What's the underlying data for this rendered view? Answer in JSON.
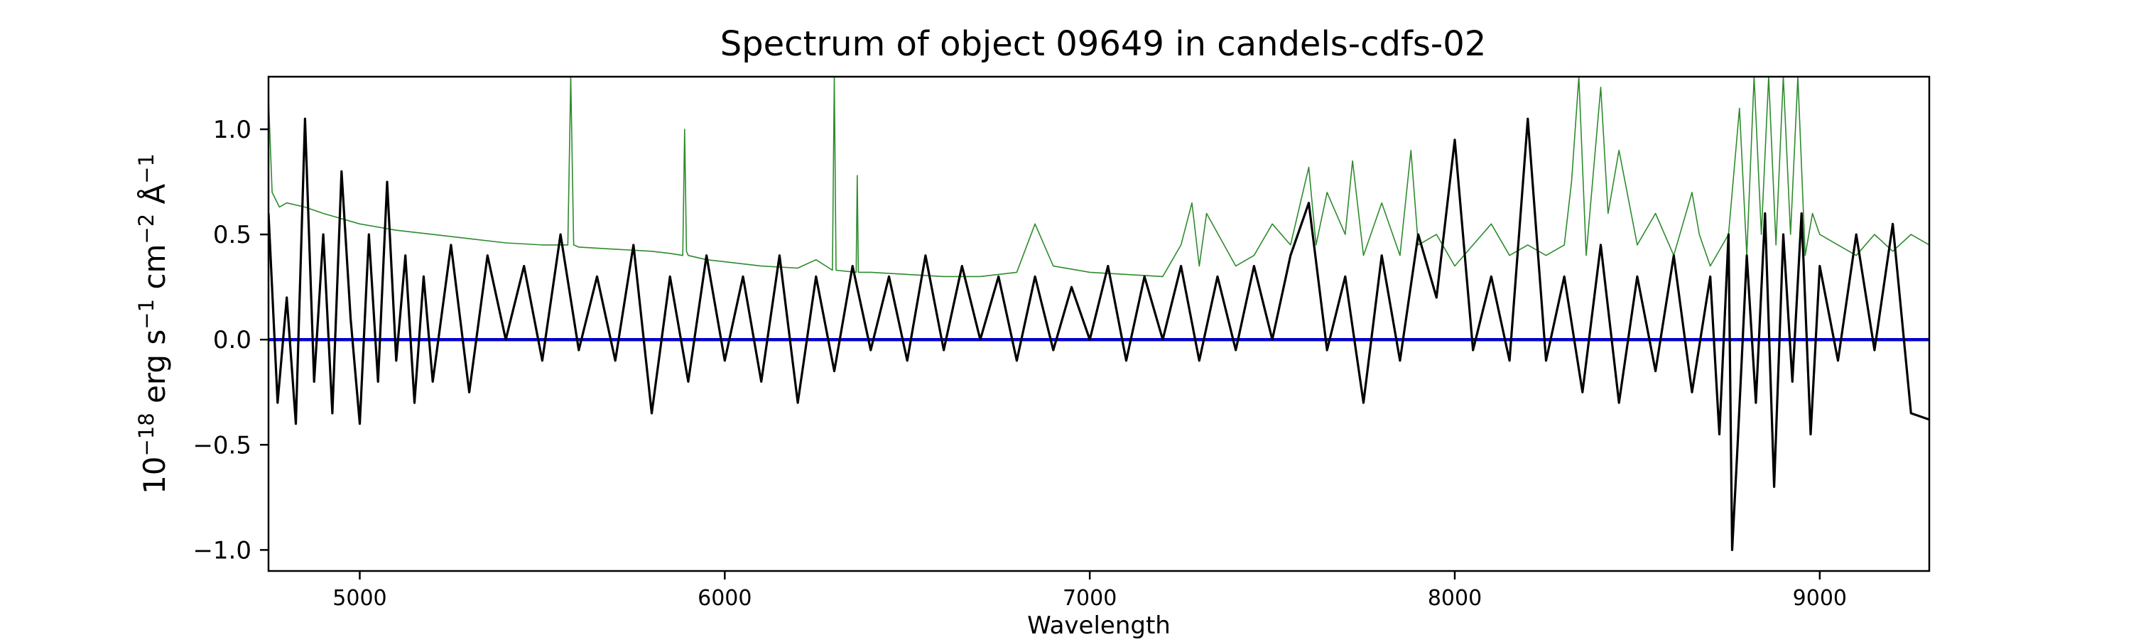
{
  "chart_data": {
    "type": "line",
    "title": "Spectrum of object 09649 in candels-cdfs-02",
    "xlabel": "Wavelength",
    "ylabel_parts": {
      "base": "10",
      "exp1": "−18",
      "erg": " erg s",
      "exp2": "−1",
      "cm": " cm",
      "exp3": "−2",
      "ang": " Å",
      "exp4": "−1"
    },
    "xlim": [
      4750,
      9300
    ],
    "ylim": [
      -1.1,
      1.25
    ],
    "xticks": [
      5000,
      6000,
      7000,
      8000,
      9000
    ],
    "yticks": [
      -1.0,
      -0.5,
      0.0,
      0.5,
      1.0
    ],
    "ytick_labels": [
      "−1.0",
      "−0.5",
      "0.0",
      "0.5",
      "1.0"
    ],
    "grid": false,
    "colors": {
      "flux": "#000000",
      "error": "#2e8b2e",
      "zero": "#0000cc",
      "axes": "#000000"
    },
    "series": [
      {
        "id": "flux",
        "x": [
          4750,
          4775,
          4800,
          4825,
          4850,
          4875,
          4900,
          4925,
          4950,
          4975,
          5000,
          5025,
          5050,
          5075,
          5100,
          5125,
          5150,
          5175,
          5200,
          5250,
          5300,
          5350,
          5400,
          5450,
          5500,
          5550,
          5600,
          5650,
          5700,
          5750,
          5800,
          5850,
          5900,
          5950,
          6000,
          6050,
          6100,
          6150,
          6200,
          6250,
          6300,
          6350,
          6400,
          6450,
          6500,
          6550,
          6600,
          6650,
          6700,
          6750,
          6800,
          6850,
          6900,
          6950,
          7000,
          7050,
          7100,
          7150,
          7200,
          7250,
          7300,
          7350,
          7400,
          7450,
          7500,
          7550,
          7600,
          7650,
          7700,
          7750,
          7800,
          7850,
          7900,
          7950,
          8000,
          8050,
          8100,
          8150,
          8200,
          8250,
          8300,
          8350,
          8400,
          8450,
          8500,
          8550,
          8600,
          8650,
          8700,
          8725,
          8750,
          8760,
          8775,
          8800,
          8825,
          8850,
          8875,
          8900,
          8925,
          8950,
          8975,
          9000,
          9050,
          9100,
          9150,
          9200,
          9250,
          9300
        ],
        "y": [
          0.6,
          -0.3,
          0.2,
          -0.4,
          1.05,
          -0.2,
          0.5,
          -0.35,
          0.8,
          0.1,
          -0.4,
          0.5,
          -0.2,
          0.75,
          -0.1,
          0.4,
          -0.3,
          0.3,
          -0.2,
          0.45,
          -0.25,
          0.4,
          0.0,
          0.35,
          -0.1,
          0.5,
          -0.05,
          0.3,
          -0.1,
          0.45,
          -0.35,
          0.3,
          -0.2,
          0.4,
          -0.1,
          0.3,
          -0.2,
          0.4,
          -0.3,
          0.3,
          -0.15,
          0.35,
          -0.05,
          0.3,
          -0.1,
          0.4,
          -0.05,
          0.35,
          0.0,
          0.3,
          -0.1,
          0.3,
          -0.05,
          0.25,
          0.0,
          0.35,
          -0.1,
          0.3,
          0.0,
          0.35,
          -0.1,
          0.3,
          -0.05,
          0.35,
          0.0,
          0.4,
          0.65,
          -0.05,
          0.3,
          -0.3,
          0.4,
          -0.1,
          0.5,
          0.2,
          0.95,
          -0.05,
          0.3,
          -0.1,
          1.05,
          -0.1,
          0.3,
          -0.25,
          0.45,
          -0.3,
          0.3,
          -0.15,
          0.4,
          -0.25,
          0.3,
          -0.45,
          0.5,
          -1.0,
          -0.5,
          0.4,
          -0.3,
          0.6,
          -0.7,
          0.5,
          -0.2,
          0.6,
          -0.45,
          0.35,
          -0.1,
          0.5,
          -0.05,
          0.55,
          -0.35,
          -0.38
        ]
      },
      {
        "id": "error",
        "x": [
          4750,
          4760,
          4780,
          4800,
          4850,
          4900,
          5000,
          5100,
          5200,
          5300,
          5400,
          5500,
          5570,
          5578,
          5586,
          5600,
          5700,
          5800,
          5850,
          5885,
          5890,
          5895,
          5900,
          5950,
          6000,
          6100,
          6200,
          6250,
          6295,
          6300,
          6305,
          6360,
          6363,
          6366,
          6400,
          6500,
          6600,
          6700,
          6800,
          6850,
          6900,
          7000,
          7100,
          7200,
          7250,
          7280,
          7300,
          7320,
          7400,
          7450,
          7500,
          7550,
          7600,
          7620,
          7650,
          7700,
          7720,
          7750,
          7800,
          7850,
          7880,
          7900,
          7950,
          8000,
          8050,
          8100,
          8150,
          8200,
          8250,
          8300,
          8320,
          8340,
          8360,
          8400,
          8420,
          8450,
          8500,
          8550,
          8600,
          8650,
          8670,
          8700,
          8750,
          8780,
          8800,
          8820,
          8840,
          8860,
          8880,
          8900,
          8920,
          8940,
          8960,
          8980,
          9000,
          9050,
          9100,
          9150,
          9200,
          9250,
          9300
        ],
        "y": [
          1.15,
          0.7,
          0.63,
          0.65,
          0.63,
          0.6,
          0.55,
          0.52,
          0.5,
          0.48,
          0.46,
          0.45,
          0.45,
          1.25,
          0.45,
          0.44,
          0.43,
          0.42,
          0.41,
          0.4,
          1.0,
          0.42,
          0.4,
          0.38,
          0.37,
          0.35,
          0.34,
          0.38,
          0.33,
          1.25,
          0.33,
          0.32,
          0.78,
          0.32,
          0.32,
          0.31,
          0.3,
          0.3,
          0.32,
          0.55,
          0.35,
          0.32,
          0.31,
          0.3,
          0.45,
          0.65,
          0.35,
          0.6,
          0.35,
          0.4,
          0.55,
          0.45,
          0.82,
          0.45,
          0.7,
          0.5,
          0.85,
          0.4,
          0.65,
          0.4,
          0.9,
          0.45,
          0.5,
          0.35,
          0.45,
          0.55,
          0.4,
          0.45,
          0.4,
          0.45,
          0.75,
          1.25,
          0.4,
          1.2,
          0.6,
          0.9,
          0.45,
          0.6,
          0.4,
          0.7,
          0.5,
          0.35,
          0.5,
          1.1,
          0.4,
          1.25,
          0.5,
          1.25,
          0.45,
          1.25,
          0.5,
          1.25,
          0.4,
          0.6,
          0.5,
          0.45,
          0.4,
          0.5,
          0.42,
          0.5,
          0.45
        ]
      },
      {
        "id": "zero",
        "x": [
          4750,
          9300
        ],
        "y": [
          0.0,
          0.0
        ]
      }
    ]
  }
}
